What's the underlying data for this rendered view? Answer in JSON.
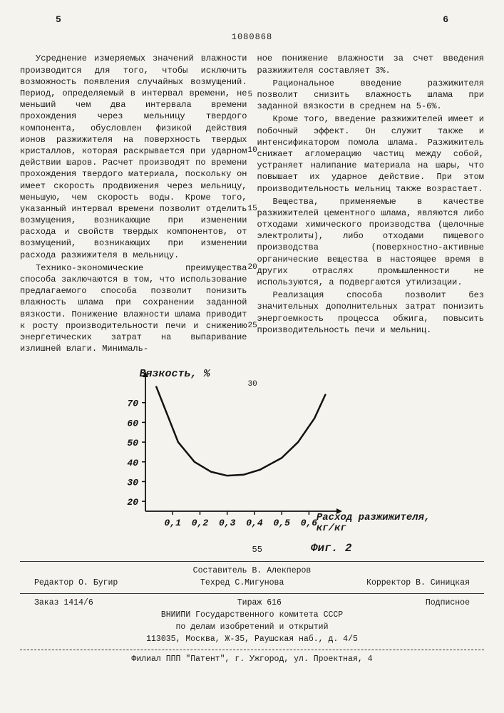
{
  "header": {
    "page_left": "5",
    "page_right": "6"
  },
  "doc_id": "1080868",
  "col_left": {
    "p1": "Усреднение измеряемых значений влажности производится для того, чтобы исключить возможность появления случайных возмущений. Период, определяемый в интервал времени, не меньший чем два интервала времени прохождения через мельницу твердого компонента, обусловлен физикой действия ионов разжижителя на поверхность твердых кристаллов, которая раскрывается при ударном действии шаров. Расчет производят по времени прохождения твердого материала, поскольку он имеет скорость продвижения через мельницу, меньшую, чем скорость воды. Кроме того, указанный интервал времени позволит отделить возмущения, возникающие при изменении расхода и свойств твердых компонентов, от возмущений, возникающих при изменении расхода разжижителя в мельницу.",
    "p2": "Технико-экономические преимущества способа заключаются в том, что использование предлагаемого способа позволит понизить влажность шлама при сохранении заданной вязкости. Понижение влажности шлама приводит к росту производительности печи и снижению энергетических затрат на выпаривание излишней влаги. Минималь-"
  },
  "col_right": {
    "p1": "ное понижение влажности за счет введения разжижителя составляет 3%.",
    "p2": "Рациональное введение разжижителя позволит снизить влажность шлама при заданной вязкости в среднем на 5-6%.",
    "p3": "Кроме того, введение разжижителей имеет и побочный эффект. Он служит также и интенсификатором помола шлама. Разжижитель снижает агломерацию частиц между собой, устраняет налипание материала на шары, что повышает их ударное действие. При этом производительность мельниц также возрастает.",
    "p4": "Вещества, применяемые в качестве разжижителей цементного шлама, являются либо отходами химического производства (щелочные электролиты), либо отходами пищевого производства (поверхностно-активные органические вещества в настоящее время в других отраслях промышленности не используются, а подвергаются утилизации.",
    "p5": "Реализация способа позволит без значительных дополнительных затрат понизить энергоемкость процесса обжига, повысить производительность печи и мельниц."
  },
  "line_marks": {
    "m5": "5",
    "m10": "10",
    "m15": "15",
    "m20": "20",
    "m25": "25",
    "m30": "30"
  },
  "chart": {
    "type": "line",
    "ylabel": "Вязкость, %",
    "xlabel_line1": "Расход разжижителя,",
    "xlabel_line2": "кг/кг",
    "caption": "Фиг. 2",
    "mark55": "55",
    "yticks": [
      "20",
      "30",
      "40",
      "50",
      "60",
      "70"
    ],
    "xticks": [
      "0,1",
      "0,2",
      "0,3",
      "0,4",
      "0,5",
      "0,6"
    ],
    "x_values": [
      0.04,
      0.08,
      0.12,
      0.18,
      0.24,
      0.3,
      0.36,
      0.42,
      0.5,
      0.56,
      0.62,
      0.66
    ],
    "y_values": [
      78,
      64,
      50,
      40,
      35,
      33,
      33.5,
      36,
      42,
      50,
      62,
      74
    ],
    "axis_color": "#111111",
    "curve_color": "#111111",
    "curve_width": 2.5,
    "background": "#f5f3ee",
    "xlim": [
      0,
      0.68
    ],
    "ylim": [
      15,
      80
    ],
    "tick_font": 13
  },
  "footer": {
    "compiler": "Составитель В. Алекперов",
    "editor": "Редактор О. Бугир",
    "techred": "Техред С.Мигунова",
    "corrector": "Корректор В. Синицкая",
    "order": "Заказ 1414/6",
    "tirazh": "Тираж 616",
    "subscribe": "Подписное",
    "org1": "ВНИИПИ Государственного комитета СССР",
    "org2": "по делам изобретений и открытий",
    "addr1": "113035, Москва, Ж-35, Раушская наб., д. 4/5",
    "branch": "Филиал ППП \"Патент\", г. Ужгород, ул. Проектная, 4"
  }
}
